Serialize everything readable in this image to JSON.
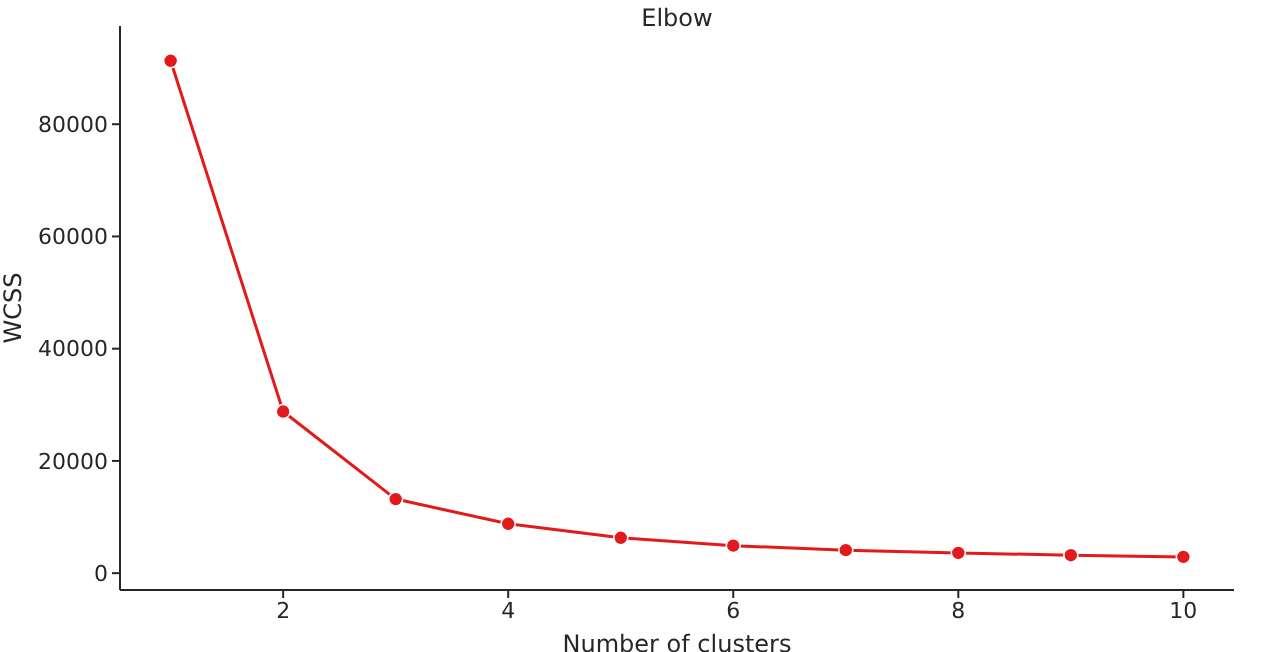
{
  "chart_data": {
    "type": "line",
    "title": "Elbow",
    "xlabel": "Number of clusters",
    "ylabel": "WCSS",
    "x": [
      1,
      2,
      3,
      4,
      5,
      6,
      7,
      8,
      9,
      10
    ],
    "series": [
      {
        "color": "#e3191c",
        "values": [
          91300,
          28800,
          13200,
          8800,
          6300,
          4900,
          4100,
          3600,
          3200,
          2900
        ]
      }
    ],
    "xlim": [
      0.55,
      10.45
    ],
    "xticks": [
      2,
      4,
      6,
      8,
      10
    ],
    "ylim": [
      -3000,
      97500
    ],
    "yticks": [
      0,
      20000,
      40000,
      60000,
      80000
    ],
    "marker": "circle",
    "line_style": "solid",
    "grid": false,
    "legend": false
  }
}
